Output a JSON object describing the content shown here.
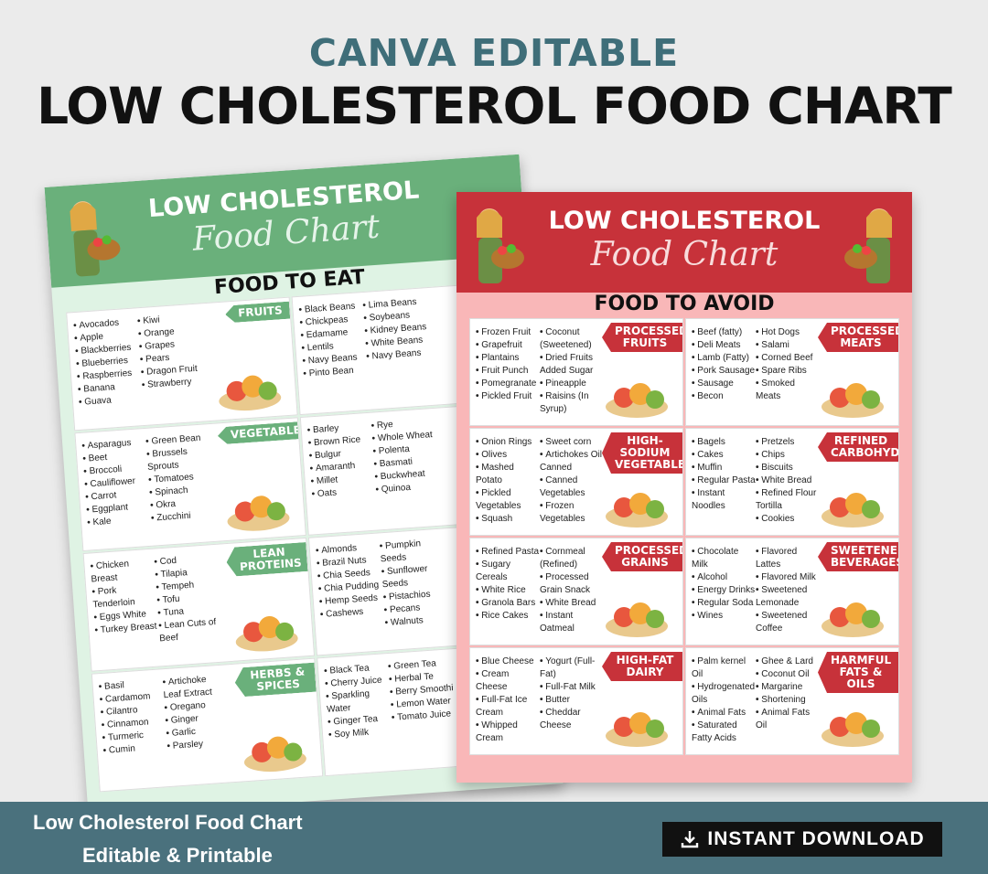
{
  "header": {
    "subtitle": "CANVA EDITABLE",
    "title": "LOW CHOLESTEROL FOOD CHART"
  },
  "green_sheet": {
    "title_line1": "LOW CHOLESTEROL",
    "title_line2": "Food Chart",
    "section_title": "FOOD TO EAT",
    "cells": [
      {
        "tag": "FRUITS",
        "col1": [
          "Avocados",
          "Apple",
          "Blackberries",
          "Blueberries",
          "Raspberries",
          "Banana",
          "Guava"
        ],
        "col2": [
          "Kiwi",
          "Orange",
          "Grapes",
          "Pears",
          "Dragon Fruit",
          "Strawberry"
        ]
      },
      {
        "tag": "",
        "col1": [
          "Black Beans",
          "Chickpeas",
          "Edamame",
          "Lentils",
          "Navy Beans",
          "Pinto Bean"
        ],
        "col2": [
          "Lima Beans",
          "Soybeans",
          "Kidney Beans",
          "White Beans",
          "Navy Beans"
        ]
      },
      {
        "tag": "VEGETABLES",
        "col1": [
          "Asparagus",
          "Beet",
          "Broccoli",
          "Cauliflower",
          "Carrot",
          "Eggplant",
          "Kale"
        ],
        "col2": [
          "Green Bean",
          "Brussels Sprouts",
          "Tomatoes",
          "Spinach",
          "Okra",
          "Zucchini"
        ]
      },
      {
        "tag": "",
        "col1": [
          "Barley",
          "Brown Rice",
          "Bulgur",
          "Amaranth",
          "Millet",
          "Oats"
        ],
        "col2": [
          "Rye",
          "Whole Wheat",
          "Polenta",
          "Basmati",
          "Buckwheat",
          "Quinoa"
        ]
      },
      {
        "tag": "LEAN PROTEINS",
        "col1": [
          "Chicken Breast",
          "Pork Tenderloin",
          "Eggs White",
          "Turkey Breast"
        ],
        "col2": [
          "Cod",
          "Tilapia",
          "Tempeh",
          "Tofu",
          "Tuna",
          "Lean Cuts of Beef"
        ]
      },
      {
        "tag": "",
        "col1": [
          "Almonds",
          "Brazil Nuts",
          "Chia Seeds",
          "Chia Pudding",
          "Hemp Seeds",
          "Cashews"
        ],
        "col2": [
          "Pumpkin Seeds",
          "Sunflower Seeds",
          "Pistachios",
          "Pecans",
          "Walnuts"
        ]
      },
      {
        "tag": "HERBS & SPICES",
        "col1": [
          "Basil",
          "Cardamom",
          "Cilantro",
          "Cinnamon",
          "Turmeric",
          "Cumin"
        ],
        "col2": [
          "Artichoke Leaf Extract",
          "Oregano",
          "Ginger",
          "Garlic",
          "Parsley"
        ]
      },
      {
        "tag": "",
        "col1": [
          "Black Tea",
          "Cherry Juice",
          "Sparkling Water",
          "Ginger Tea",
          "Soy Milk"
        ],
        "col2": [
          "Green Tea",
          "Herbal Te",
          "Berry Smoothi",
          "Lemon Water",
          "Tomato Juice"
        ]
      }
    ]
  },
  "red_sheet": {
    "title_line1": "LOW CHOLESTEROL",
    "title_line2": "Food Chart",
    "section_title": "FOOD TO AVOID",
    "cells": [
      {
        "tag": "PROCESSED FRUITS",
        "col1": [
          "Frozen Fruit",
          "Grapefruit",
          "Plantains",
          "Fruit Punch",
          "Pomegranate",
          "Pickled Fruit"
        ],
        "col2": [
          "Coconut (Sweetened)",
          "Dried Fruits Added Sugar",
          "Pineapple",
          "Raisins (In Syrup)"
        ]
      },
      {
        "tag": "PROCESSED MEATS",
        "col1": [
          "Beef (fatty)",
          "Deli Meats",
          "Lamb (Fatty)",
          "Pork Sausage",
          "Sausage",
          "Becon"
        ],
        "col2": [
          "Hot Dogs",
          "Salami",
          "Corned Beef",
          "Spare Ribs",
          "Smoked Meats"
        ]
      },
      {
        "tag": "HIGH-SODIUM VEGETABLES",
        "col1": [
          "Onion Rings",
          "Olives",
          "Mashed Potato",
          "Pickled Vegetables",
          "Squash"
        ],
        "col2": [
          "Sweet corn",
          "Artichokes Oil Canned",
          "Canned Vegetables",
          "Frozen Vegetables"
        ]
      },
      {
        "tag": "REFINED CARBOHYDRATES",
        "col1": [
          "Bagels",
          "Cakes",
          "Muffin",
          "Regular Pasta",
          "Instant Noodles"
        ],
        "col2": [
          "Pretzels",
          "Chips",
          "Biscuits",
          "White Bread",
          "Refined Flour Tortilla",
          "Cookies"
        ]
      },
      {
        "tag": "PROCESSED GRAINS",
        "col1": [
          "Refined Pasta",
          "Sugary Cereals",
          "White Rice",
          "Granola Bars",
          "Rice Cakes"
        ],
        "col2": [
          "Cornmeal (Refined)",
          "Processed Grain Snack",
          "White Bread",
          "Instant Oatmeal"
        ]
      },
      {
        "tag": "SWEETENED BEVERAGES",
        "col1": [
          "Chocolate Milk",
          "Alcohol",
          "Energy Drinks",
          "Regular Soda",
          "Wines"
        ],
        "col2": [
          "Flavored Lattes",
          "Flavored Milk",
          "Sweetened Lemonade",
          "Sweetened Coffee"
        ]
      },
      {
        "tag": "HIGH-FAT DAIRY",
        "col1": [
          "Blue Cheese",
          "Cream Cheese",
          "Full-Fat Ice Cream",
          "Whipped Cream"
        ],
        "col2": [
          "Yogurt (Full-Fat)",
          "Full-Fat Milk",
          "Butter",
          "Cheddar Cheese"
        ]
      },
      {
        "tag": "HARMFUL FATS & OILS",
        "col1": [
          "Palm kernel Oil",
          "Hydrogenated Oils",
          "Animal Fats",
          "Saturated Fatty Acids"
        ],
        "col2": [
          "Ghee & Lard",
          "Coconut Oil",
          "Margarine",
          "Shortening",
          "Animal Fats Oil"
        ]
      }
    ]
  },
  "footer": {
    "line1": "Low Cholesterol Food Chart",
    "line2": "Editable & Printable",
    "download_label": "INSTANT DOWNLOAD"
  },
  "colors": {
    "green": "#6ab07b",
    "red": "#c7323a",
    "teal": "#4a717d",
    "pink": "#f9b7b8"
  }
}
